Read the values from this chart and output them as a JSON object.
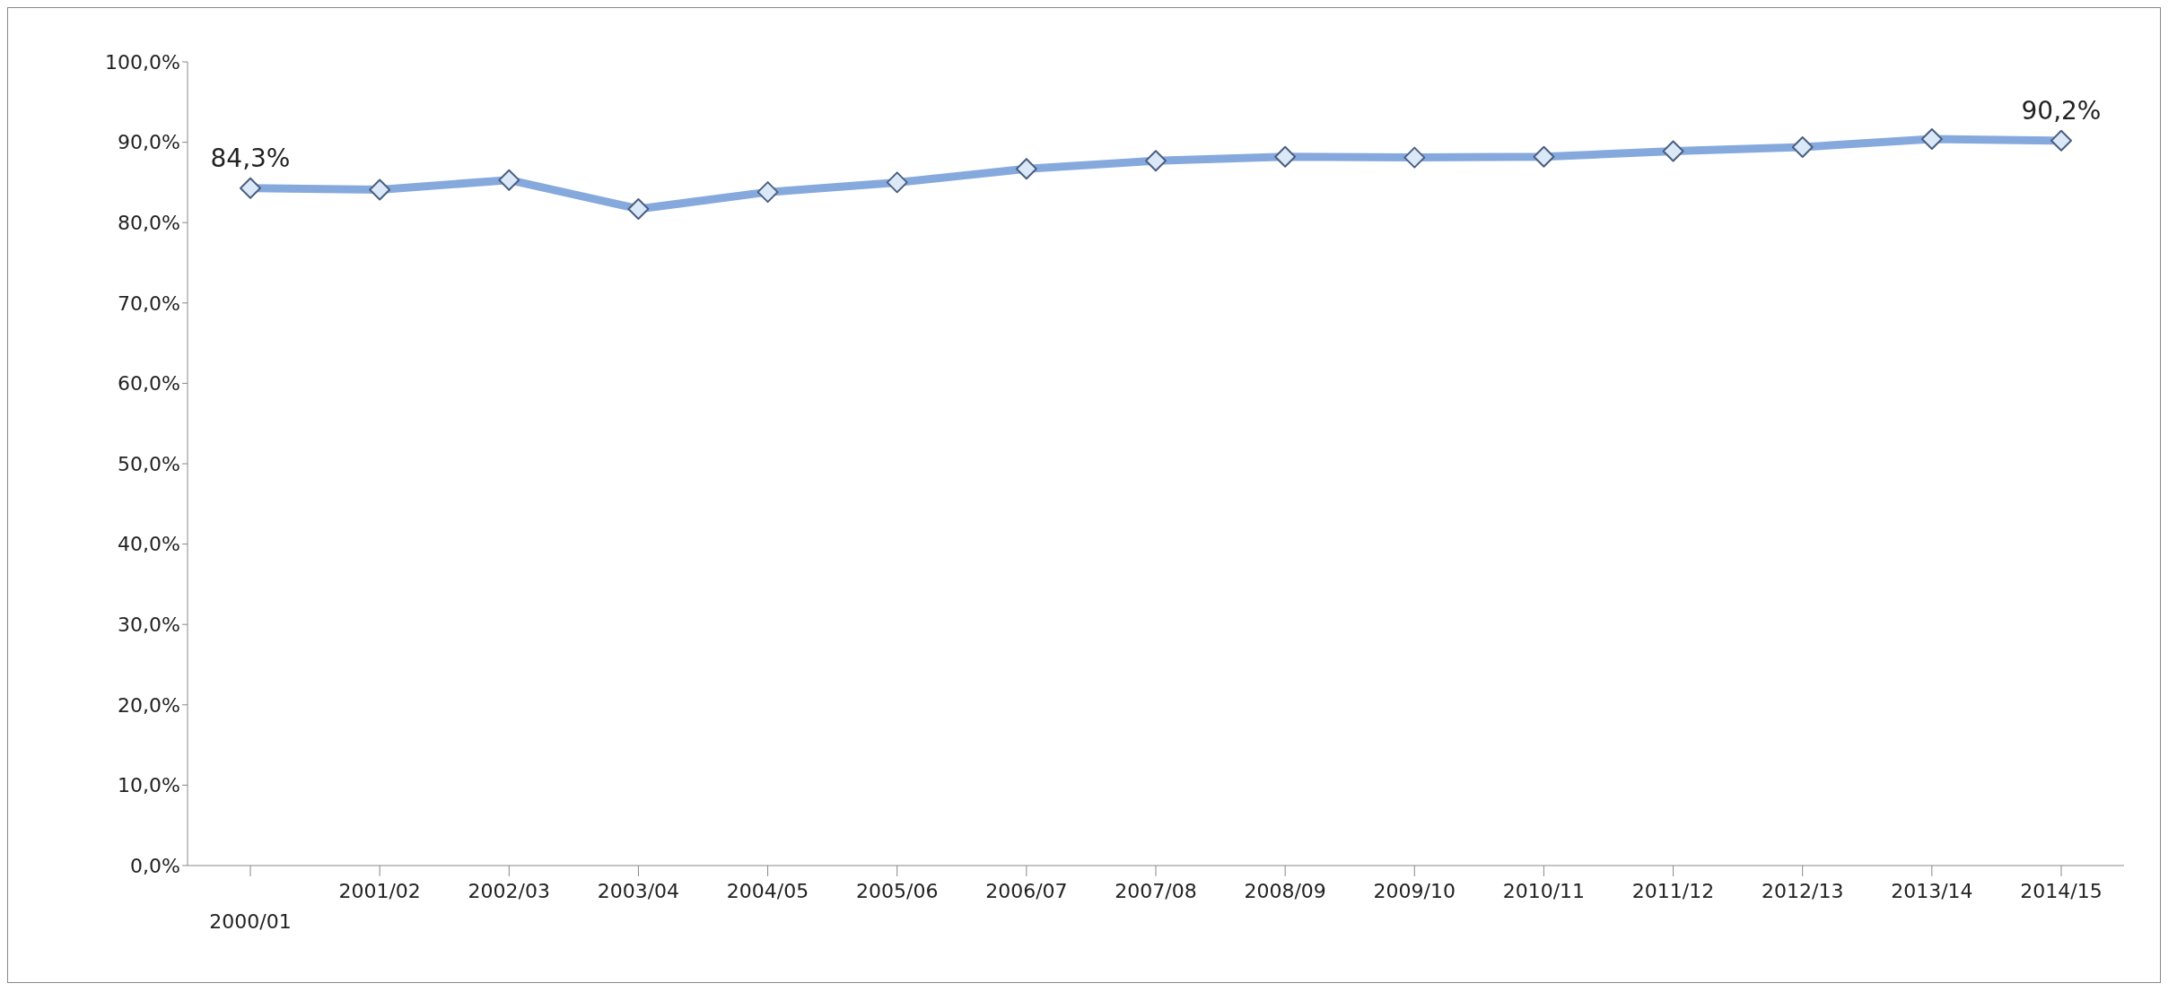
{
  "chart_data": {
    "type": "line",
    "categories": [
      "2000/01",
      "2001/02",
      "2002/03",
      "2003/04",
      "2004/05",
      "2005/06",
      "2006/07",
      "2007/08",
      "2008/09",
      "2009/10",
      "2010/11",
      "2011/12",
      "2012/13",
      "2013/14",
      "2014/15"
    ],
    "series": [
      {
        "color": "#86a9dd",
        "values": [
          84.3,
          84.1,
          85.3,
          81.7,
          83.8,
          85.0,
          86.7,
          87.7,
          88.2,
          88.1,
          88.2,
          88.9,
          89.4,
          90.4,
          90.2
        ],
        "value_labels": [
          "84,3%",
          null,
          null,
          null,
          null,
          null,
          null,
          null,
          null,
          null,
          null,
          null,
          null,
          null,
          "90,2%"
        ]
      }
    ],
    "ylim": [
      0,
      100
    ],
    "yticks": [
      {
        "value": 0,
        "label": "0,0%"
      },
      {
        "value": 10,
        "label": "10,0%"
      },
      {
        "value": 20,
        "label": "20,0%"
      },
      {
        "value": 30,
        "label": "30,0%"
      },
      {
        "value": 40,
        "label": "40,0%"
      },
      {
        "value": 50,
        "label": "50,0%"
      },
      {
        "value": 60,
        "label": "60,0%"
      },
      {
        "value": 70,
        "label": "70,0%"
      },
      {
        "value": 80,
        "label": "80,0%"
      },
      {
        "value": 90,
        "label": "90,0%"
      },
      {
        "value": 100,
        "label": "100,0%"
      }
    ],
    "grid": false,
    "legend": false,
    "marker": "diamond",
    "line_style": "solid"
  }
}
